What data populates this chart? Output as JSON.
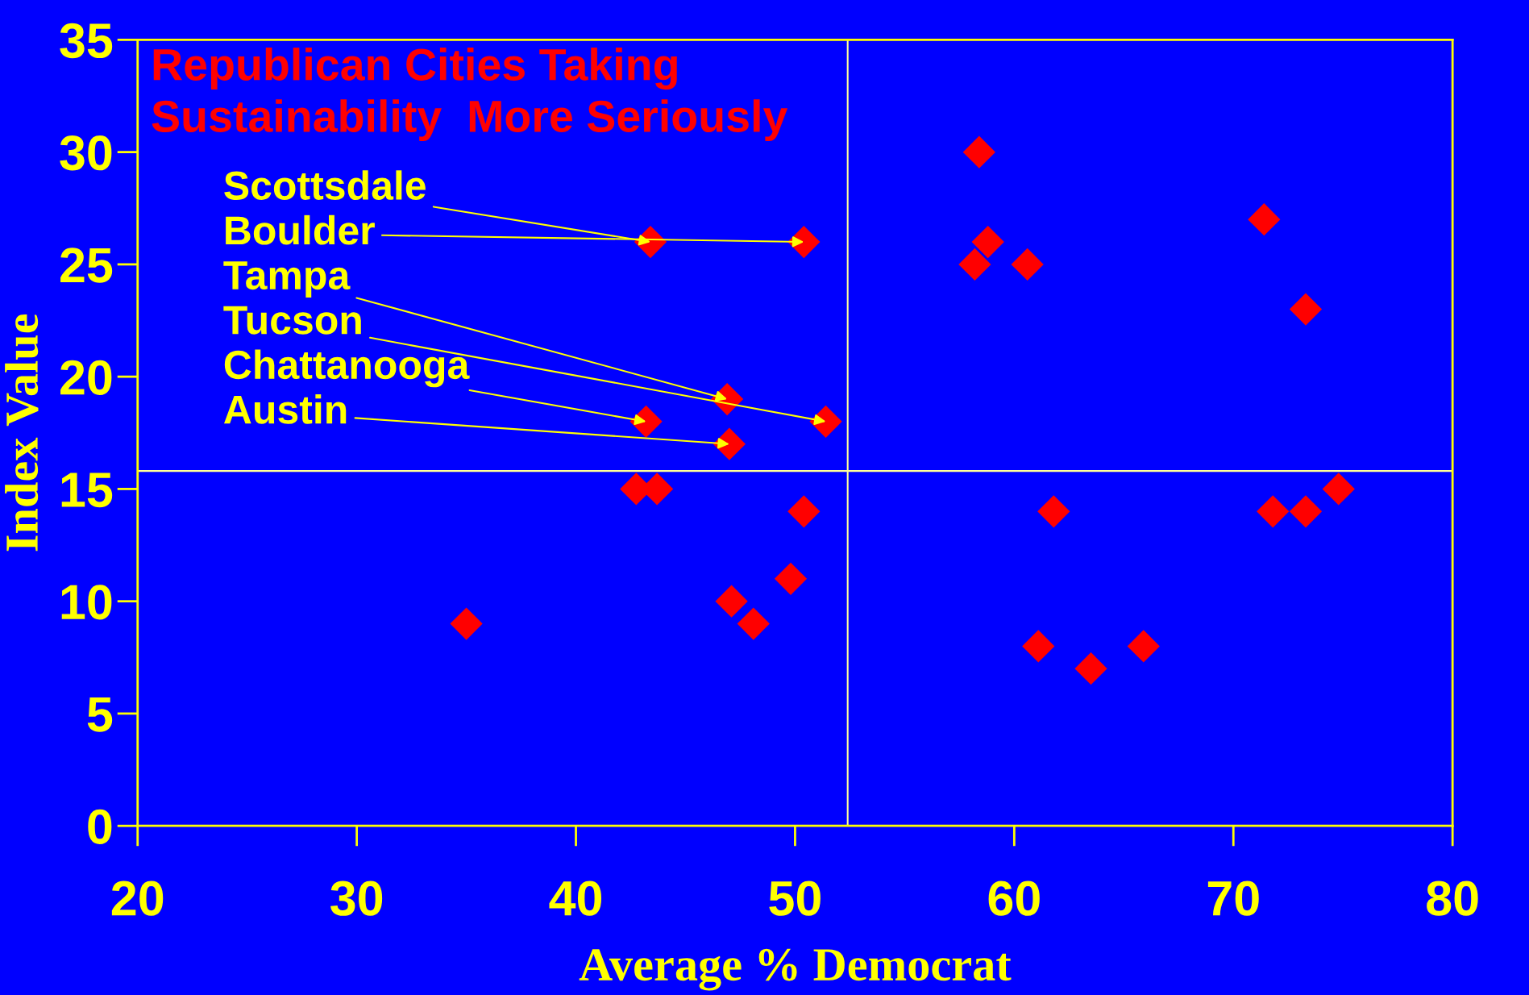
{
  "chart_data": {
    "type": "scatter",
    "title": "Republican Cities Taking\nSustainability  More Seriously",
    "xlabel": "Average % Democrat",
    "ylabel": "Index Value",
    "x": [
      35.0,
      42.75,
      43.7,
      43.4,
      43.2,
      46.9,
      47.0,
      47.1,
      48.1,
      49.8,
      50.4,
      50.4,
      51.4,
      58.4,
      58.2,
      58.8,
      60.6,
      61.1,
      61.8,
      63.5,
      65.9,
      71.4,
      71.8,
      73.3,
      73.3,
      74.8
    ],
    "series": [
      {
        "color": "#ff0000",
        "values": [
          9,
          15,
          15,
          26,
          18,
          19,
          17,
          10,
          9,
          11,
          14,
          26,
          18,
          30,
          25,
          26,
          25,
          8,
          14,
          7,
          8,
          27,
          14,
          23,
          14,
          15
        ]
      }
    ],
    "marker": "diamond",
    "xlim": [
      20,
      80
    ],
    "xticks": [
      20,
      30,
      40,
      50,
      60,
      70,
      80
    ],
    "ylim": [
      0,
      35
    ],
    "yticks": [
      0,
      5,
      10,
      15,
      20,
      25,
      30,
      35
    ],
    "ref_lines": [
      {
        "axis": "x",
        "value": 52.4,
        "color": "#ffff99"
      },
      {
        "axis": "y",
        "value": 15.8,
        "color": "#ffff99"
      }
    ],
    "annotations": [
      {
        "text": "Scottsdale",
        "x": 43.4,
        "y": 26
      },
      {
        "text": "Boulder",
        "x": 50.4,
        "y": 26
      },
      {
        "text": "Tampa",
        "x": 46.9,
        "y": 19
      },
      {
        "text": "Tucson",
        "x": 51.4,
        "y": 18
      },
      {
        "text": "Chattanooga",
        "x": 43.2,
        "y": 18
      },
      {
        "text": "Austin",
        "x": 47.0,
        "y": 17
      }
    ],
    "grid": false,
    "legend": false
  }
}
